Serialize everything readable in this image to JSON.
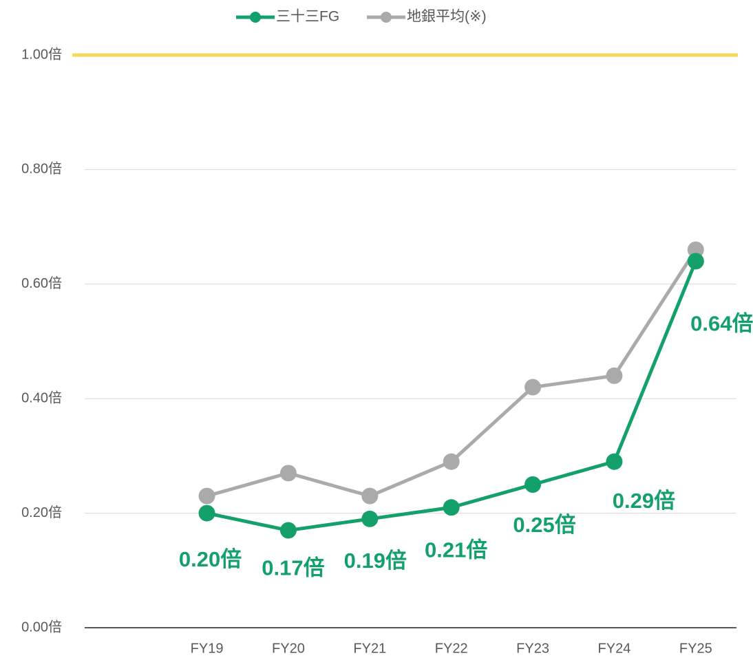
{
  "chart_data": {
    "type": "line",
    "categories": [
      null,
      "FY19",
      "FY20",
      "FY21",
      "FY22",
      "FY23",
      "FY24",
      "FY25"
    ],
    "series": [
      {
        "name": "三十三FG",
        "color": "#13a06a",
        "values": [
          null,
          0.2,
          0.17,
          0.19,
          0.21,
          0.25,
          0.29,
          0.64
        ],
        "value_labels": [
          null,
          "0.20倍",
          "0.17倍",
          "0.19倍",
          "0.21倍",
          "0.25倍",
          "0.29倍",
          "0.64倍"
        ]
      },
      {
        "name": "地銀平均(※)",
        "color": "#aaaaaa",
        "values": [
          null,
          0.23,
          0.27,
          0.23,
          0.29,
          0.42,
          0.44,
          0.66
        ]
      }
    ],
    "ylim": [
      0,
      1
    ],
    "yticks": [
      {
        "value": 0,
        "label": "0.00倍"
      },
      {
        "value": 0.2,
        "label": "0.20倍"
      },
      {
        "value": 0.4,
        "label": "0.40倍"
      },
      {
        "value": 0.6,
        "label": "0.60倍"
      },
      {
        "value": 0.8,
        "label": "0.80倍"
      },
      {
        "value": 1,
        "label": "1.00倍"
      }
    ],
    "reference_line": {
      "value": 1,
      "color": "#f5d95a"
    },
    "grid": true,
    "legend": "top"
  }
}
